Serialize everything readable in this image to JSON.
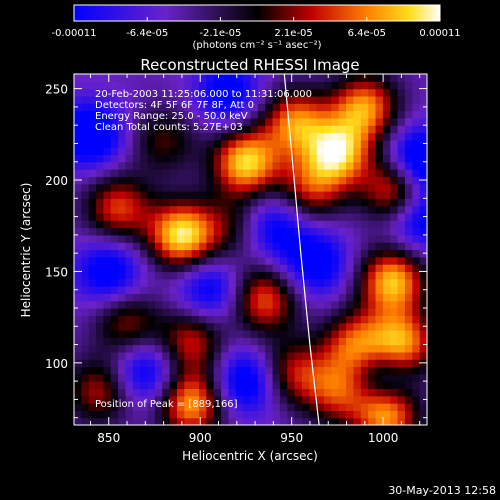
{
  "chart_data": {
    "type": "heatmap",
    "title": "Reconstructed RHESSI Image",
    "xlabel": "Heliocentric X (arcsec)",
    "ylabel": "Heliocentric Y (arcsec)",
    "xlim": [
      831,
      1024
    ],
    "ylim": [
      66,
      258
    ],
    "xticks": [
      850,
      900,
      950,
      1000
    ],
    "yticks": [
      100,
      150,
      200,
      250
    ],
    "colorbar": {
      "range": [
        -0.00011,
        0.00011
      ],
      "tick_labels": [
        "-0.00011",
        "-6.4e-05",
        "-2.1e-05",
        "2.1e-05",
        "6.4e-05",
        "0.00011"
      ],
      "unit_label": "(photons cm⁻² s⁻¹ asec⁻²)",
      "colormap": "blue-purple-black-red-orange-yellow-white"
    },
    "annotations": [
      "20-Feb-2003 11:25:06.000 to 11:31:06.000",
      "Detectors: 4F 5F 6F 7F 8F, Att 0",
      "Energy Range: 25.0 - 50.0 keV",
      "Clean    Total counts: 5.27E+03"
    ],
    "peak_label": "Position of Peak = [889,166]",
    "peak_position": [
      889,
      166
    ],
    "limb_curve": {
      "x": [
        946,
        950,
        955,
        960,
        965
      ],
      "y": [
        258,
        215,
        160,
        110,
        66
      ]
    },
    "blobs": [
      {
        "x": 890,
        "y": 170,
        "v": 1.0
      },
      {
        "x": 925,
        "y": 210,
        "v": 0.95
      },
      {
        "x": 952,
        "y": 232,
        "v": 0.75
      },
      {
        "x": 975,
        "y": 215,
        "v": 0.9
      },
      {
        "x": 1008,
        "y": 195,
        "v": 0.85
      },
      {
        "x": 990,
        "y": 240,
        "v": 0.8
      },
      {
        "x": 1005,
        "y": 145,
        "v": 0.9
      },
      {
        "x": 1010,
        "y": 110,
        "v": 0.9
      },
      {
        "x": 935,
        "y": 135,
        "v": 0.7
      },
      {
        "x": 855,
        "y": 185,
        "v": 0.65
      },
      {
        "x": 860,
        "y": 122,
        "v": 0.5
      },
      {
        "x": 845,
        "y": 85,
        "v": 0.55
      },
      {
        "x": 895,
        "y": 112,
        "v": 0.6
      },
      {
        "x": 895,
        "y": 78,
        "v": 0.85
      },
      {
        "x": 960,
        "y": 195,
        "v": 0.55
      },
      {
        "x": 985,
        "y": 110,
        "v": 0.7
      },
      {
        "x": 975,
        "y": 85,
        "v": 0.6
      },
      {
        "x": 1002,
        "y": 72,
        "v": 0.85
      },
      {
        "x": 950,
        "y": 95,
        "v": 0.55
      },
      {
        "x": 918,
        "y": 175,
        "v": 0.35
      },
      {
        "x": 880,
        "y": 222,
        "v": 0.4
      },
      {
        "x": 963,
        "y": 155,
        "v": -0.55
      },
      {
        "x": 1020,
        "y": 210,
        "v": -0.8
      },
      {
        "x": 925,
        "y": 90,
        "v": -0.6
      },
      {
        "x": 850,
        "y": 150,
        "v": -0.55
      },
      {
        "x": 905,
        "y": 140,
        "v": -0.5
      },
      {
        "x": 840,
        "y": 225,
        "v": -0.65
      },
      {
        "x": 1020,
        "y": 180,
        "v": -0.6
      },
      {
        "x": 915,
        "y": 248,
        "v": -0.5
      },
      {
        "x": 870,
        "y": 95,
        "v": -0.55
      },
      {
        "x": 940,
        "y": 175,
        "v": -0.5
      },
      {
        "x": 1000,
        "y": 95,
        "v": -0.45
      }
    ]
  },
  "footer_date": "30-May-2013 12:58"
}
